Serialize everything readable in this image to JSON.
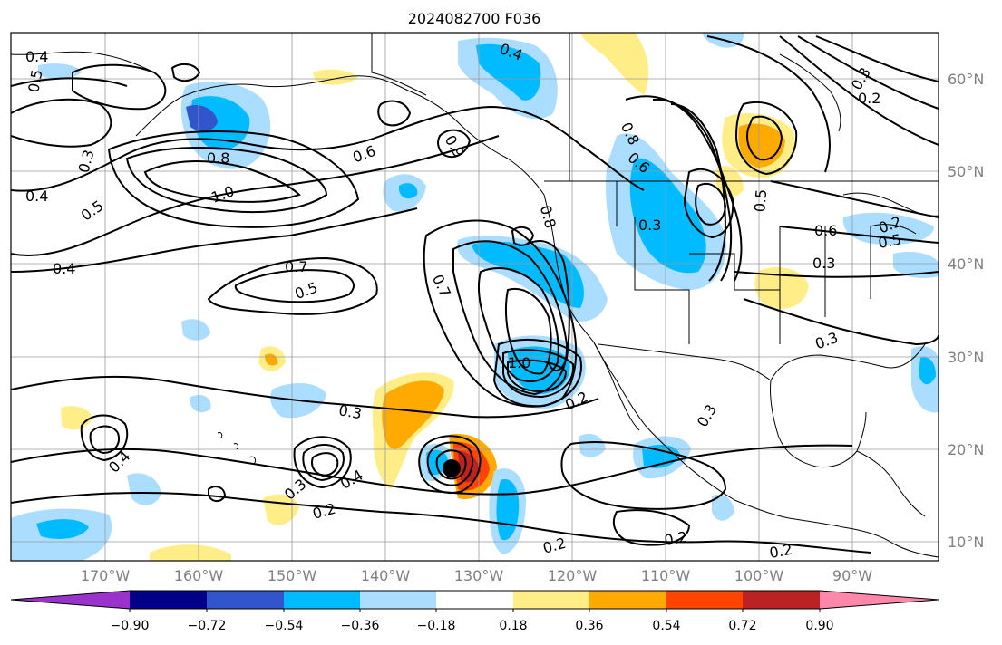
{
  "title": "2024082700 F036",
  "lat_labels": [
    "60°N",
    "50°N",
    "40°N",
    "30°N",
    "20°N",
    "10°N"
  ],
  "lon_labels": [
    "170°W",
    "160°W",
    "150°W",
    "140°W",
    "130°W",
    "120°W",
    "110°W",
    "100°W",
    "90°W"
  ],
  "colorbar": {
    "colors": [
      "#9933cc",
      "#000088",
      "#3355cc",
      "#00bbff",
      "#aaddff",
      "#ffffff",
      "#ffee88",
      "#ffaa00",
      "#ff4400",
      "#bb2222",
      "#ff88aa"
    ],
    "ticks": [
      "−0.90",
      "−0.72",
      "−0.54",
      "−0.36",
      "−0.18",
      "0.18",
      "0.36",
      "0.54",
      "0.72",
      "0.90"
    ]
  },
  "contour_labels": [
    {
      "text": "0.4"
    },
    {
      "text": "0.5"
    },
    {
      "text": "0.3"
    },
    {
      "text": "0.4"
    },
    {
      "text": "0.5"
    },
    {
      "text": "0.8"
    },
    {
      "text": "1.0"
    },
    {
      "text": "0.6"
    },
    {
      "text": "0.4"
    },
    {
      "text": "0.7"
    },
    {
      "text": "0.5"
    },
    {
      "text": "0.7"
    },
    {
      "text": "1.0"
    },
    {
      "text": "0.2"
    },
    {
      "text": "0.3"
    },
    {
      "text": "0.3"
    },
    {
      "text": "0.4"
    },
    {
      "text": "0.3"
    },
    {
      "text": "0.2"
    },
    {
      "text": "0.4"
    },
    {
      "text": "0.2"
    },
    {
      "text": "0.2"
    },
    {
      "text": "0.2"
    },
    {
      "text": "0.3"
    },
    {
      "text": "0.3"
    },
    {
      "text": "0.6"
    },
    {
      "text": "0.8"
    },
    {
      "text": "0.5"
    },
    {
      "text": "0.6"
    },
    {
      "text": "0.5"
    },
    {
      "text": "0.3"
    },
    {
      "text": "0.2"
    },
    {
      "text": "0.4"
    },
    {
      "text": "0.3"
    },
    {
      "text": "0.2"
    },
    {
      "text": "0.8"
    },
    {
      "text": "0.9"
    }
  ],
  "storm_marker": "tropical-cyclone-center"
}
